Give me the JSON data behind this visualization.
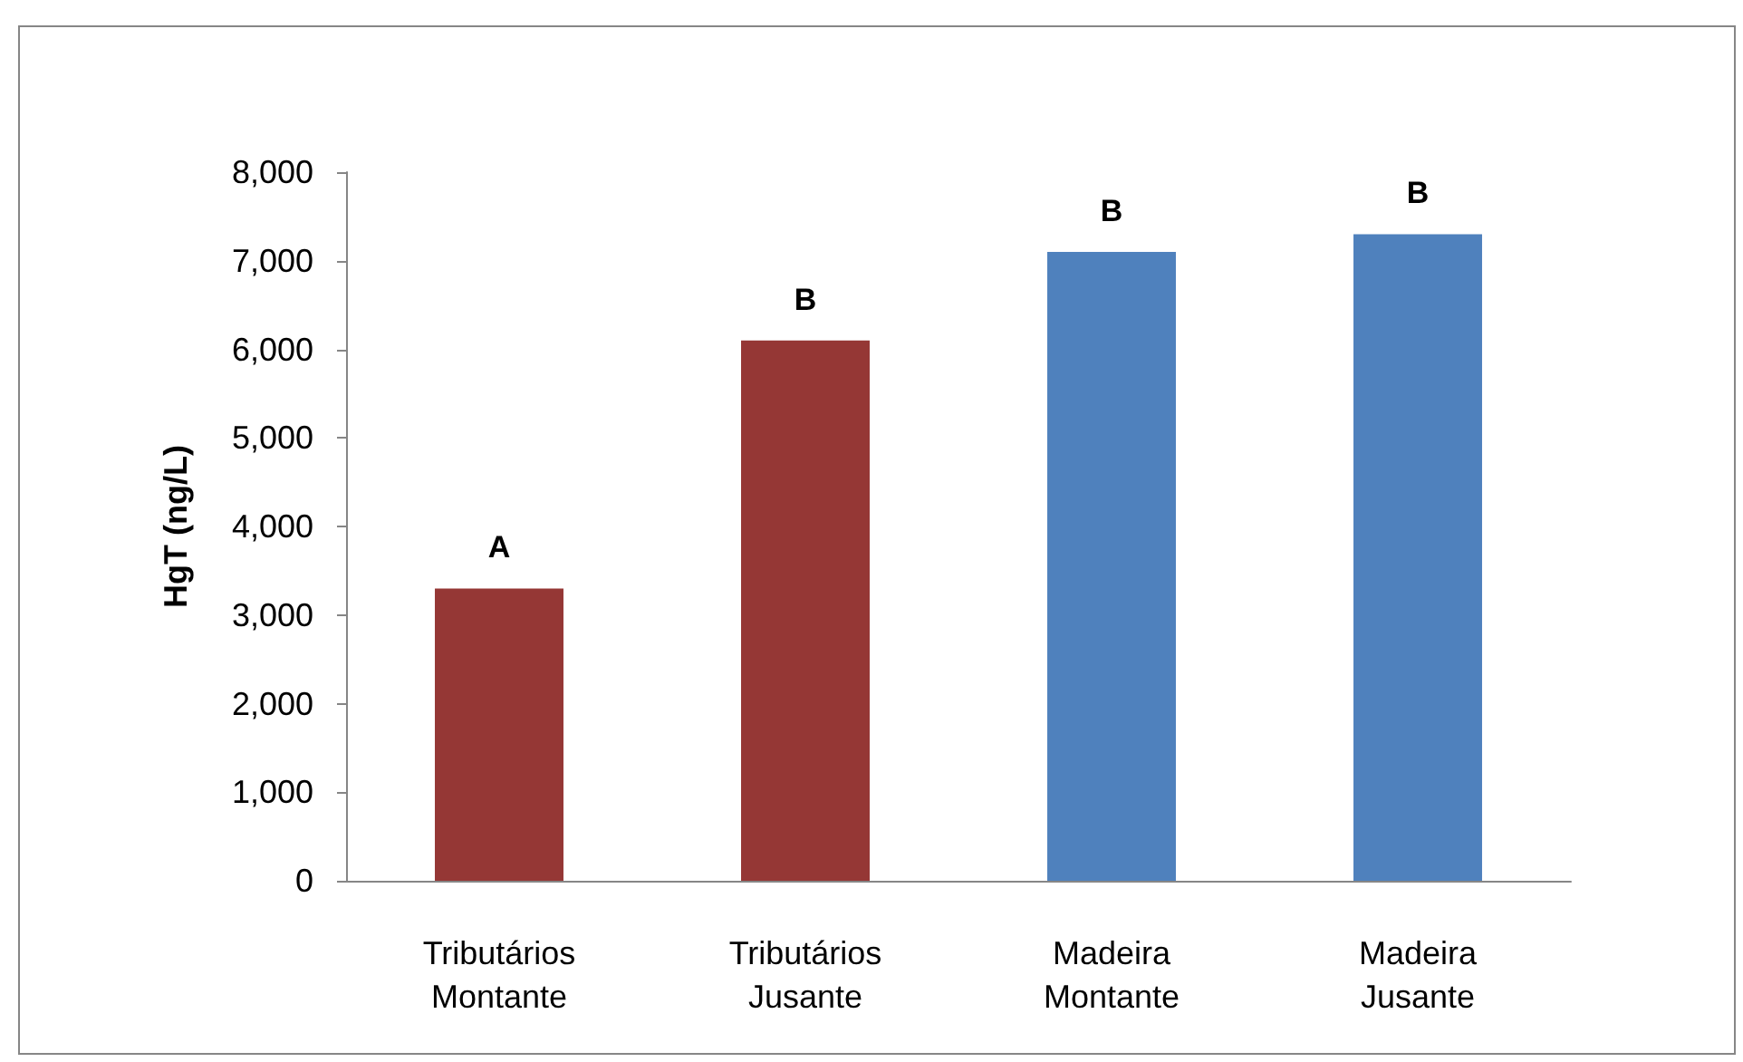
{
  "chart_data": {
    "type": "bar",
    "ylabel": "HgT (ng/L)",
    "categories": [
      "Tributários Montante",
      "Tributários Jusante",
      "Madeira Montante",
      "Madeira Jusante"
    ],
    "values": [
      3300,
      6100,
      7100,
      7300
    ],
    "colors": [
      "#953735",
      "#953735",
      "#4f81bd",
      "#4f81bd"
    ],
    "ylim": [
      0,
      8000
    ],
    "yticks": [
      {
        "value": 0,
        "label": "0"
      },
      {
        "value": 1000,
        "label": "1,000"
      },
      {
        "value": 2000,
        "label": "2,000"
      },
      {
        "value": 3000,
        "label": "3,000"
      },
      {
        "value": 4000,
        "label": "4,000"
      },
      {
        "value": 5000,
        "label": "5,000"
      },
      {
        "value": 6000,
        "label": "6,000"
      },
      {
        "value": 7000,
        "label": "7,000"
      },
      {
        "value": 8000,
        "label": "8,000"
      }
    ],
    "grid": false,
    "annotations": [
      {
        "text": "A",
        "x": "Tributários Montante",
        "y": 3300
      },
      {
        "text": "B",
        "x": "Tributários Jusante",
        "y": 6100
      },
      {
        "text": "B",
        "x": "Madeira Montante",
        "y": 7100
      },
      {
        "text": "B",
        "x": "Madeira Jusante",
        "y": 7300
      }
    ]
  }
}
